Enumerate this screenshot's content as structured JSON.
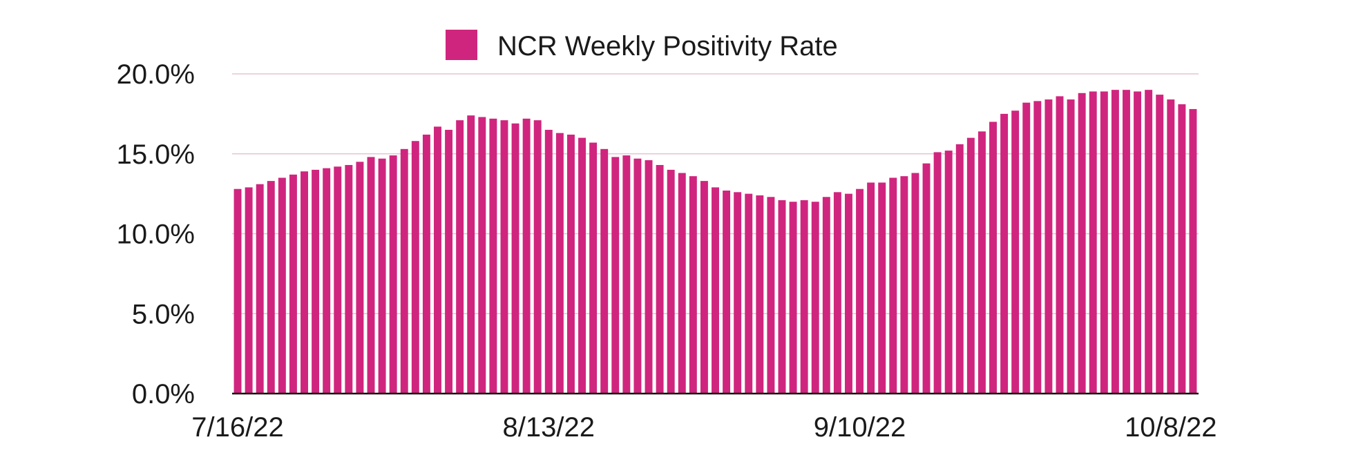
{
  "chart_data": {
    "type": "bar",
    "title": "",
    "xlabel": "",
    "ylabel": "",
    "ylim": [
      0,
      20
    ],
    "y_ticks": [
      "0.0%",
      "5.0%",
      "10.0%",
      "15.0%",
      "20.0%"
    ],
    "y_tick_values": [
      0,
      5,
      10,
      15,
      20
    ],
    "x_tick_labels": [
      "7/16/22",
      "8/13/22",
      "9/10/22",
      "10/8/22"
    ],
    "x_tick_day_index": [
      0,
      28,
      56,
      84
    ],
    "start_date": "7/16/22",
    "end_date": "10/8/22",
    "grid": true,
    "legend_position": "top-center",
    "series": [
      {
        "name": "NCR Weekly Positivity Rate",
        "color": "#d0257e",
        "values": [
          12.8,
          12.9,
          13.1,
          13.3,
          13.5,
          13.7,
          13.9,
          14.0,
          14.1,
          14.2,
          14.3,
          14.5,
          14.8,
          14.7,
          14.9,
          15.3,
          15.8,
          16.2,
          16.7,
          16.5,
          17.1,
          17.4,
          17.3,
          17.2,
          17.1,
          16.9,
          17.2,
          17.1,
          16.5,
          16.3,
          16.2,
          16.0,
          15.7,
          15.3,
          14.8,
          14.9,
          14.7,
          14.6,
          14.3,
          14.0,
          13.8,
          13.6,
          13.3,
          12.9,
          12.7,
          12.6,
          12.5,
          12.4,
          12.3,
          12.1,
          12.0,
          12.1,
          12.0,
          12.3,
          12.6,
          12.5,
          12.8,
          13.2,
          13.2,
          13.5,
          13.6,
          13.8,
          14.4,
          15.1,
          15.2,
          15.6,
          16.0,
          16.4,
          17.0,
          17.5,
          17.7,
          18.2,
          18.3,
          18.4,
          18.6,
          18.4,
          18.8,
          18.9,
          18.9,
          19.0,
          19.0,
          18.9,
          19.0,
          18.7,
          18.4,
          18.1,
          17.8
        ]
      }
    ]
  }
}
